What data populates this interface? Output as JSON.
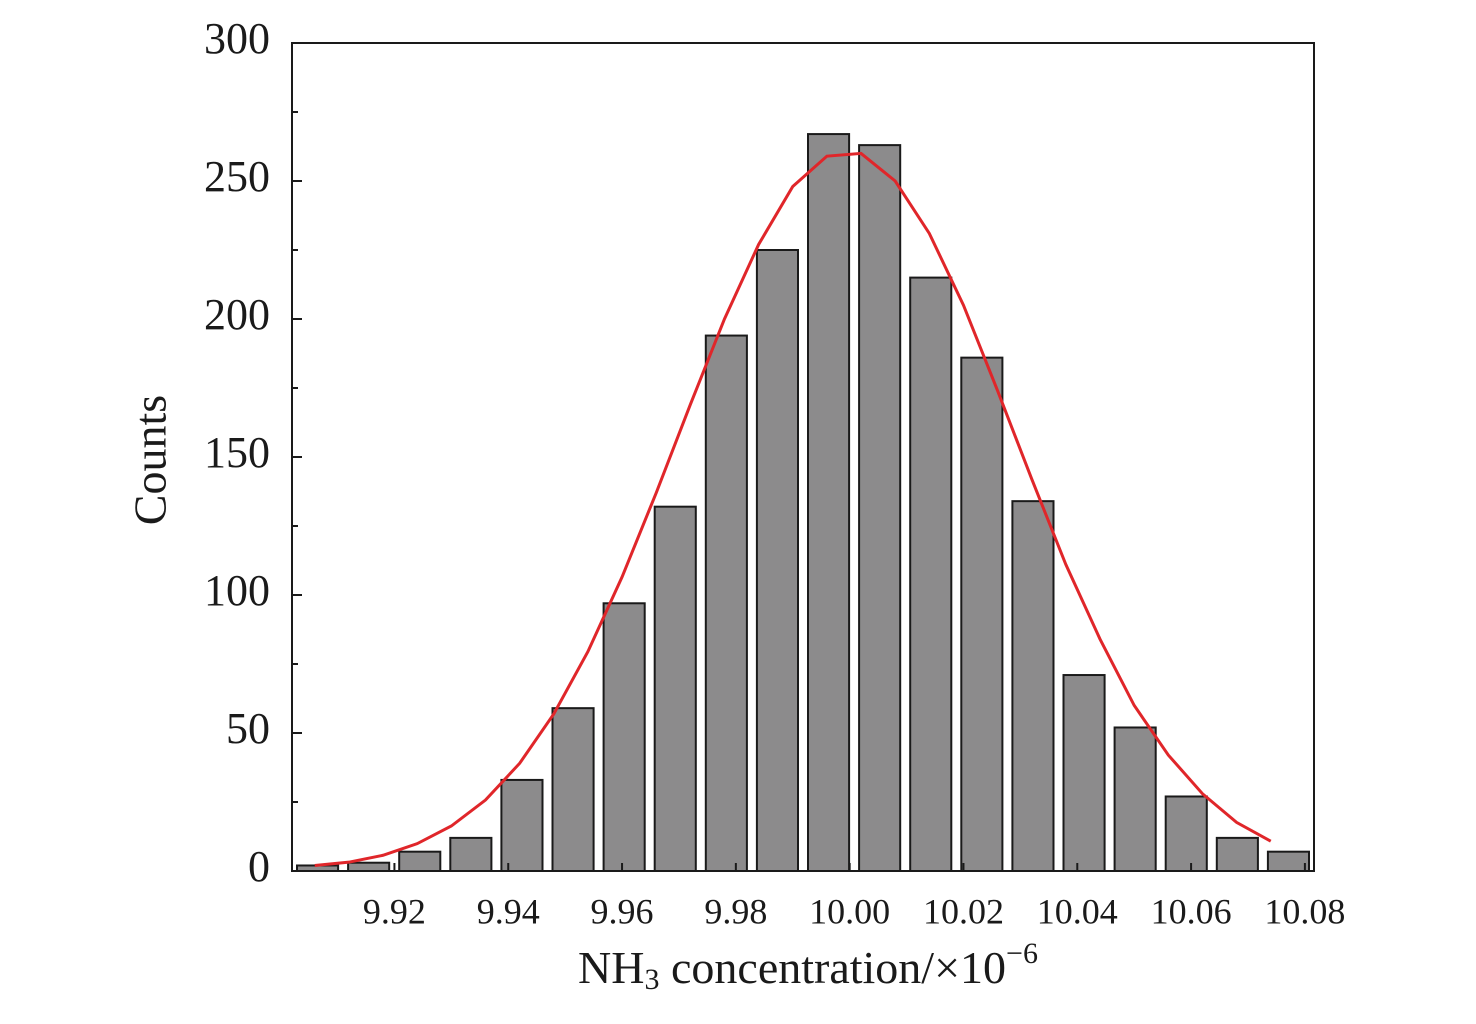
{
  "chart_data": {
    "type": "histogram",
    "ylabel": "Counts",
    "xlabel": [
      "NH",
      "3",
      " concentration/×10",
      "−6"
    ],
    "bins": [
      9.902,
      9.91098,
      9.91996,
      9.92894,
      9.93792,
      9.9469,
      9.95588,
      9.96486,
      9.97384,
      9.98282,
      9.9918,
      10.00078,
      10.00976,
      10.01874,
      10.02772,
      10.0367,
      10.04568,
      10.05466,
      10.06364,
      10.07262,
      10.0816
    ],
    "counts": [
      2,
      3,
      7,
      12,
      33,
      59,
      97,
      132,
      194,
      225,
      267,
      263,
      215,
      186,
      134,
      71,
      52,
      27,
      12,
      7
    ],
    "color": "#8c8b8c",
    "edgecolor": "#1a1a1a",
    "fit": {
      "type": "line",
      "color": "#e0262a",
      "x": [
        9.906,
        9.912,
        9.918,
        9.924,
        9.93,
        9.936,
        9.942,
        9.948,
        9.954,
        9.96,
        9.966,
        9.972,
        9.978,
        9.984,
        9.99,
        9.996,
        10.002,
        10.008,
        10.014,
        10.02,
        10.026,
        10.032,
        10.038,
        10.044,
        10.05,
        10.056,
        10.062,
        10.068,
        10.074
      ],
      "values": [
        2,
        3.2,
        5.7,
        9.9,
        16.3,
        25.7,
        39,
        56.9,
        79.5,
        106.5,
        137,
        169,
        200,
        227,
        248,
        259,
        260,
        250,
        231,
        205,
        174,
        142,
        111,
        84,
        60,
        42,
        28,
        17.6,
        10.8
      ]
    },
    "xlim": [
      9.902,
      10.0816
    ],
    "ylim": [
      0,
      300
    ],
    "xticks": [
      9.92,
      9.94,
      9.96,
      9.98,
      {
        "value": 10,
        "label": "10.00"
      },
      10.02,
      10.04,
      10.06,
      10.08
    ],
    "yticks": [
      0,
      50,
      100,
      150,
      200,
      250,
      300
    ],
    "yminorticks": [
      25,
      75,
      125,
      175,
      225,
      275
    ]
  }
}
